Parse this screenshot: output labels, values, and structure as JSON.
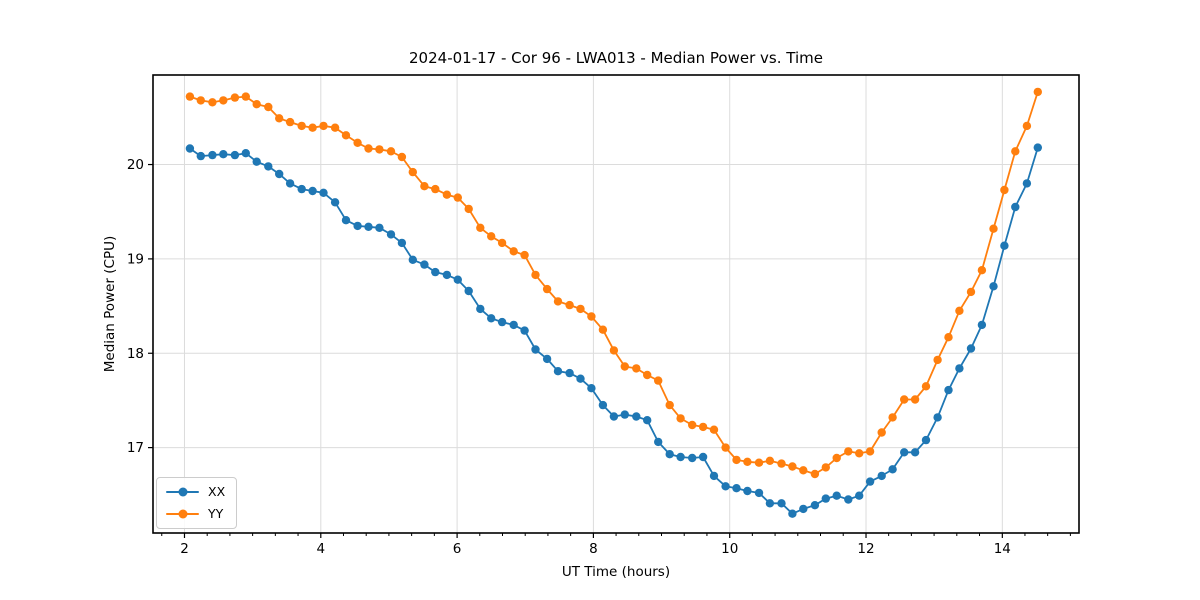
{
  "title": "2024-01-17 - Cor 96 - LWA013 - Median Power vs. Time",
  "chart_data": {
    "type": "line",
    "title": "2024-01-17 - Cor 96 - LWA013 - Median Power vs. Time",
    "xlabel": "UT Time (hours)",
    "ylabel": "Median Power (CPU)",
    "xlim": [
      1.538,
      15.125
    ],
    "ylim": [
      16.095,
      20.949
    ],
    "x_ticks": [
      2,
      4,
      6,
      8,
      10,
      12,
      14
    ],
    "y_ticks": [
      17,
      18,
      19,
      20
    ],
    "x_minor_tick_step": 0.3333,
    "grid": true,
    "legend_position": "lower left",
    "marker": "o",
    "x": [
      2.08,
      2.24,
      2.41,
      2.57,
      2.74,
      2.9,
      3.06,
      3.23,
      3.39,
      3.55,
      3.72,
      3.88,
      4.04,
      4.21,
      4.37,
      4.54,
      4.7,
      4.86,
      5.03,
      5.19,
      5.35,
      5.52,
      5.68,
      5.85,
      6.01,
      6.17,
      6.34,
      6.5,
      6.66,
      6.83,
      6.99,
      7.15,
      7.32,
      7.48,
      7.65,
      7.81,
      7.97,
      8.14,
      8.3,
      8.46,
      8.63,
      8.79,
      8.95,
      9.12,
      9.28,
      9.45,
      9.61,
      9.77,
      9.94,
      10.1,
      10.26,
      10.43,
      10.59,
      10.76,
      10.92,
      11.08,
      11.25,
      11.41,
      11.57,
      11.74,
      11.9,
      12.06,
      12.23,
      12.39,
      12.56,
      12.72,
      12.88,
      13.05,
      13.21,
      13.37,
      13.54,
      13.7,
      13.87,
      14.03,
      14.19,
      14.36,
      14.52
    ],
    "series": [
      {
        "name": "XX",
        "color": "#1f77b4",
        "values": [
          20.17,
          20.09,
          20.1,
          20.11,
          20.1,
          20.12,
          20.03,
          19.98,
          19.9,
          19.8,
          19.74,
          19.72,
          19.7,
          19.6,
          19.41,
          19.35,
          19.34,
          19.33,
          19.26,
          19.17,
          18.99,
          18.94,
          18.86,
          18.83,
          18.78,
          18.66,
          18.47,
          18.37,
          18.33,
          18.3,
          18.24,
          18.04,
          17.94,
          17.81,
          17.79,
          17.73,
          17.63,
          17.45,
          17.33,
          17.35,
          17.33,
          17.29,
          17.06,
          16.93,
          16.9,
          16.89,
          16.9,
          16.7,
          16.59,
          16.57,
          16.54,
          16.52,
          16.41,
          16.41,
          16.3,
          16.35,
          16.39,
          16.46,
          16.49,
          16.45,
          16.49,
          16.64,
          16.7,
          16.77,
          16.95,
          16.95,
          17.08,
          17.32,
          17.61,
          17.84,
          18.05,
          18.3,
          18.71,
          19.14,
          19.55,
          19.8,
          20.18
        ]
      },
      {
        "name": "YY",
        "color": "#ff7f0e",
        "values": [
          20.72,
          20.68,
          20.66,
          20.68,
          20.71,
          20.72,
          20.64,
          20.61,
          20.49,
          20.45,
          20.41,
          20.39,
          20.41,
          20.39,
          20.31,
          20.23,
          20.17,
          20.16,
          20.14,
          20.08,
          19.92,
          19.77,
          19.74,
          19.68,
          19.65,
          19.53,
          19.33,
          19.24,
          19.17,
          19.08,
          19.04,
          18.83,
          18.68,
          18.55,
          18.51,
          18.47,
          18.39,
          18.25,
          18.03,
          17.86,
          17.84,
          17.77,
          17.71,
          17.45,
          17.31,
          17.24,
          17.22,
          17.19,
          17.0,
          16.87,
          16.85,
          16.84,
          16.86,
          16.83,
          16.8,
          16.76,
          16.72,
          16.79,
          16.89,
          16.96,
          16.94,
          16.96,
          17.16,
          17.32,
          17.51,
          17.51,
          17.65,
          17.93,
          18.17,
          18.45,
          18.65,
          18.88,
          19.32,
          19.73,
          20.14,
          20.41,
          20.77
        ]
      }
    ]
  },
  "style": {
    "grid_color": "#dcdcdc",
    "spine_color": "#000000",
    "tick_color": "#000000",
    "text_color": "#000000"
  }
}
